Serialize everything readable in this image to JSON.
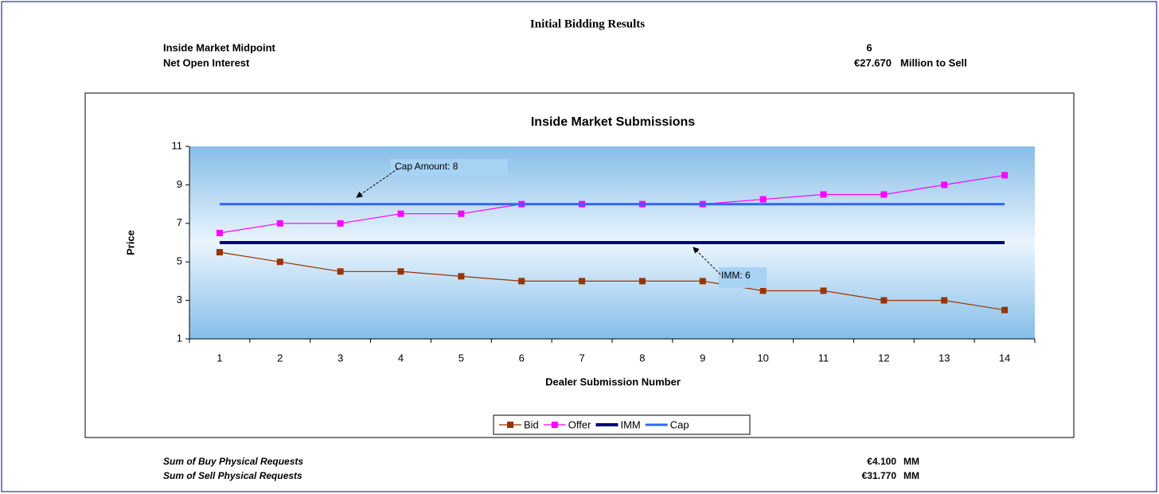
{
  "header": {
    "title": "Initial Bidding Results",
    "rows": [
      [
        "Inside Market Midpoint",
        "6"
      ],
      [
        "Net Open Interest",
        "€27.670",
        "Million to Sell"
      ]
    ]
  },
  "chart_data": {
    "type": "line",
    "title": "Inside Market Submissions",
    "x_label": "Dealer Submission Number",
    "y_label": "Price",
    "categories": [
      1,
      2,
      3,
      4,
      5,
      6,
      7,
      8,
      9,
      10,
      11,
      12,
      13,
      14
    ],
    "series": [
      {
        "name": "Bid",
        "color": "#993300",
        "marker": "square",
        "values": [
          5.5,
          5,
          4.5,
          4.5,
          4.25,
          4,
          4,
          4,
          4,
          3.5,
          3.5,
          3,
          3,
          2.5
        ]
      },
      {
        "name": "Offer",
        "color": "#ff00ff",
        "marker": "square",
        "values": [
          6.5,
          7,
          7,
          7.5,
          7.5,
          8,
          8,
          8,
          8,
          8.25,
          8.5,
          8.5,
          9,
          9.5
        ]
      },
      {
        "name": "IMM",
        "color": "#000080",
        "values": [
          6,
          6,
          6,
          6,
          6,
          6,
          6,
          6,
          6,
          6,
          6,
          6,
          6,
          6
        ]
      },
      {
        "name": "Cap",
        "color": "#3366ff",
        "values": [
          8,
          8,
          8,
          8,
          8,
          8,
          8,
          8,
          8,
          8,
          8,
          8,
          8,
          8
        ]
      }
    ],
    "ylim": [
      1,
      11
    ],
    "yticks": [
      1,
      3,
      5,
      7,
      9,
      11
    ],
    "legend": "bottom",
    "annotations": [
      {
        "text": "Cap Amount: 8"
      },
      {
        "text": "IMM: 6"
      }
    ]
  },
  "footer": {
    "rows": [
      [
        "Sum of Buy Physical Requests",
        "€4.100",
        "MM"
      ],
      [
        "Sum of Sell Physical Requests",
        "€31.770",
        "MM"
      ]
    ]
  }
}
